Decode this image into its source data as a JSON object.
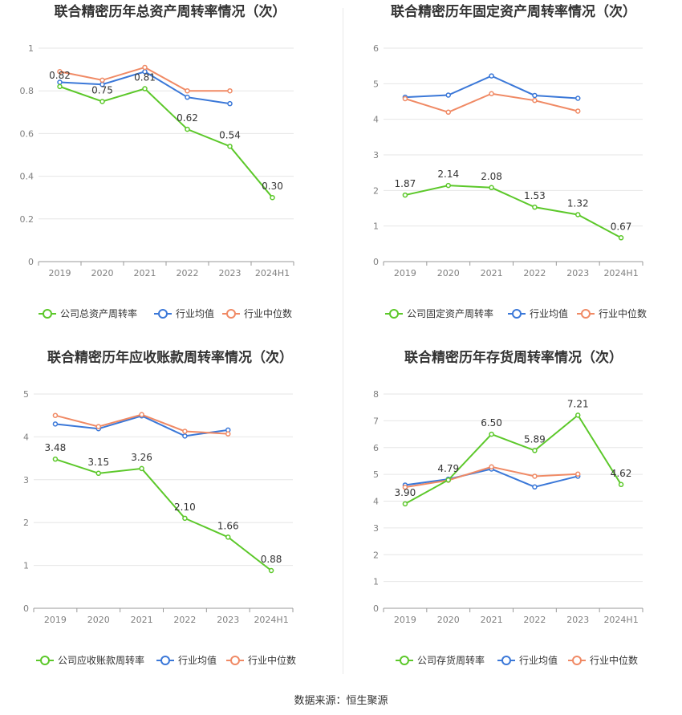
{
  "source": "数据来源：恒生聚源",
  "colors": {
    "company": "#5cc82a",
    "avg": "#3b78d8",
    "median": "#f08a65"
  },
  "chart_data": [
    {
      "type": "line",
      "title": "联合精密历年总资产周转率情况（次）",
      "categories": [
        "2019",
        "2020",
        "2021",
        "2022",
        "2023",
        "2024H1"
      ],
      "ylim": [
        0,
        1
      ],
      "yticks": [
        "0",
        "0.2",
        "0.4",
        "0.6",
        "0.8",
        "1"
      ],
      "ytick_values": [
        0,
        0.2,
        0.4,
        0.6,
        0.8,
        1
      ],
      "grid": true,
      "legend": "bottom",
      "series": [
        {
          "name": "公司总资产周转率",
          "values": [
            0.82,
            0.75,
            0.81,
            0.62,
            0.54,
            0.3
          ],
          "labels": [
            "0.82",
            "0.75",
            "0.81",
            "0.62",
            "0.54",
            "0.30"
          ],
          "color_key": "company"
        },
        {
          "name": "行业均值",
          "values": [
            0.84,
            0.83,
            0.89,
            0.77,
            0.74,
            null
          ],
          "color_key": "avg"
        },
        {
          "name": "行业中位数",
          "values": [
            0.89,
            0.85,
            0.91,
            0.8,
            0.8,
            null
          ],
          "color_key": "median"
        }
      ]
    },
    {
      "type": "line",
      "title": "联合精密历年固定资产周转率情况（次）",
      "categories": [
        "2019",
        "2020",
        "2021",
        "2022",
        "2023",
        "2024H1"
      ],
      "ylim": [
        0,
        6
      ],
      "yticks": [
        "0",
        "1",
        "2",
        "3",
        "4",
        "5",
        "6"
      ],
      "ytick_values": [
        0,
        1,
        2,
        3,
        4,
        5,
        6
      ],
      "grid": true,
      "legend": "bottom",
      "series": [
        {
          "name": "公司固定资产周转率",
          "values": [
            1.87,
            2.14,
            2.08,
            1.53,
            1.32,
            0.67
          ],
          "labels": [
            "1.87",
            "2.14",
            "2.08",
            "1.53",
            "1.32",
            "0.67"
          ],
          "color_key": "company"
        },
        {
          "name": "行业均值",
          "values": [
            4.62,
            4.68,
            5.22,
            4.67,
            4.59,
            null
          ],
          "color_key": "avg"
        },
        {
          "name": "行业中位数",
          "values": [
            4.58,
            4.2,
            4.72,
            4.53,
            4.23,
            null
          ],
          "color_key": "median"
        }
      ]
    },
    {
      "type": "line",
      "title": "联合精密历年应收账款周转率情况（次）",
      "categories": [
        "2019",
        "2020",
        "2021",
        "2022",
        "2023",
        "2024H1"
      ],
      "ylim": [
        0,
        5
      ],
      "yticks": [
        "0",
        "1",
        "2",
        "3",
        "4",
        "5"
      ],
      "ytick_values": [
        0,
        1,
        2,
        3,
        4,
        5
      ],
      "grid": true,
      "legend": "bottom",
      "series": [
        {
          "name": "公司应收账款周转率",
          "values": [
            3.48,
            3.15,
            3.26,
            2.1,
            1.66,
            0.88
          ],
          "labels": [
            "3.48",
            "3.15",
            "3.26",
            "2.10",
            "1.66",
            "0.88"
          ],
          "color_key": "company"
        },
        {
          "name": "行业均值",
          "values": [
            4.3,
            4.19,
            4.49,
            4.02,
            4.16,
            null
          ],
          "color_key": "avg"
        },
        {
          "name": "行业中位数",
          "values": [
            4.5,
            4.24,
            4.52,
            4.13,
            4.07,
            null
          ],
          "color_key": "median"
        }
      ]
    },
    {
      "type": "line",
      "title": "联合精密历年存货周转率情况（次）",
      "categories": [
        "2019",
        "2020",
        "2021",
        "2022",
        "2023",
        "2024H1"
      ],
      "ylim": [
        0,
        8
      ],
      "yticks": [
        "0",
        "1",
        "2",
        "3",
        "4",
        "5",
        "6",
        "7",
        "8"
      ],
      "ytick_values": [
        0,
        1,
        2,
        3,
        4,
        5,
        6,
        7,
        8
      ],
      "grid": true,
      "legend": "bottom",
      "series": [
        {
          "name": "公司存货周转率",
          "values": [
            3.9,
            4.79,
            6.5,
            5.89,
            7.21,
            4.62
          ],
          "labels": [
            "3.90",
            "4.79",
            "6.50",
            "5.89",
            "7.21",
            "4.62"
          ],
          "color_key": "company"
        },
        {
          "name": "行业均值",
          "values": [
            4.6,
            4.82,
            5.2,
            4.53,
            4.93,
            null
          ],
          "color_key": "avg"
        },
        {
          "name": "行业中位数",
          "values": [
            4.52,
            4.78,
            5.28,
            4.93,
            5.01,
            null
          ],
          "color_key": "median"
        }
      ]
    }
  ]
}
